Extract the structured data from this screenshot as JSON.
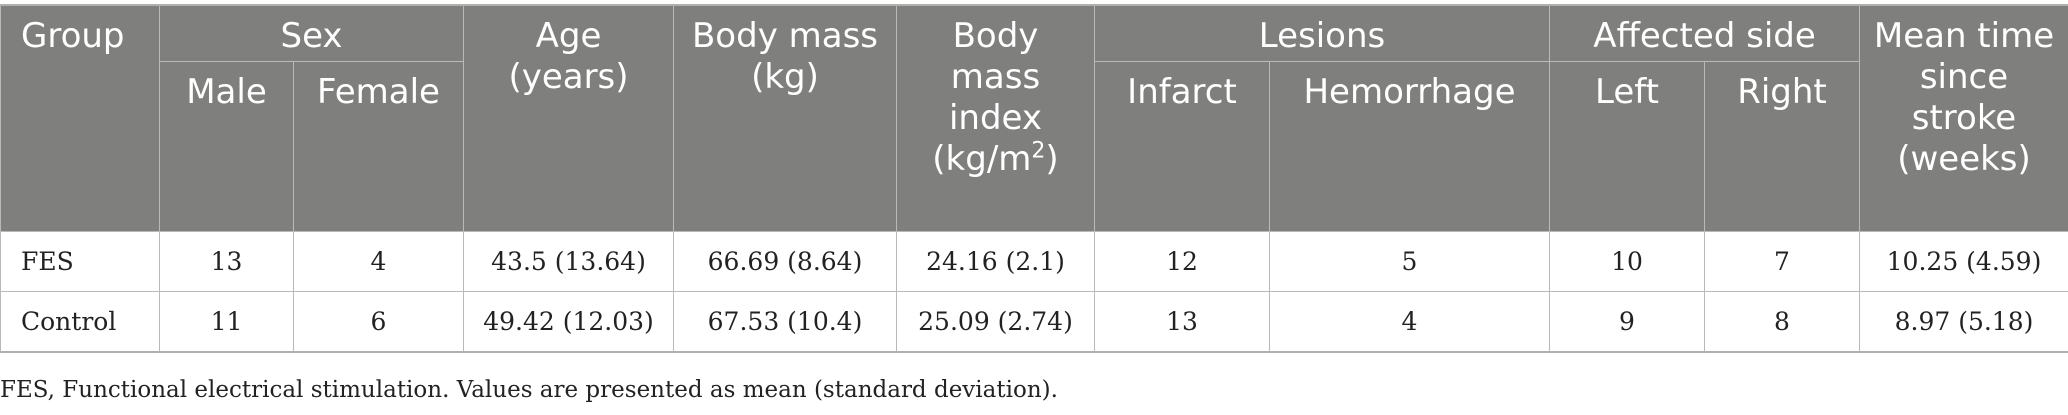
{
  "header": {
    "group": "Group",
    "sex": "Sex",
    "male": "Male",
    "female": "Female",
    "age": "Age (years)",
    "body_mass": "Body mass (kg)",
    "bmi_text": "Body mass index (kg/m",
    "bmi_sup": "2",
    "bmi_close": ")",
    "lesions": "Lesions",
    "infarct": "Infarct",
    "hemorrhage": "Hemorrhage",
    "affected_side": "Affected side",
    "left": "Left",
    "right": "Right",
    "mean_time": "Mean time since stroke (weeks)"
  },
  "rows": [
    {
      "group": "FES",
      "male": "13",
      "female": "4",
      "age": "43.5 (13.64)",
      "body_mass": "66.69 (8.64)",
      "bmi": "24.16 (2.1)",
      "infarct": "12",
      "hemorrhage": "5",
      "left": "10",
      "right": "7",
      "mean_time": "10.25 (4.59)"
    },
    {
      "group": "Control",
      "male": "11",
      "female": "6",
      "age": "49.42 (12.03)",
      "body_mass": "67.53 (10.4)",
      "bmi": "25.09 (2.74)",
      "infarct": "13",
      "hemorrhage": "4",
      "left": "9",
      "right": "8",
      "mean_time": "8.97 (5.18)"
    }
  ],
  "footnote": "FES, Functional electrical stimulation. Values are presented as mean (standard deviation)."
}
